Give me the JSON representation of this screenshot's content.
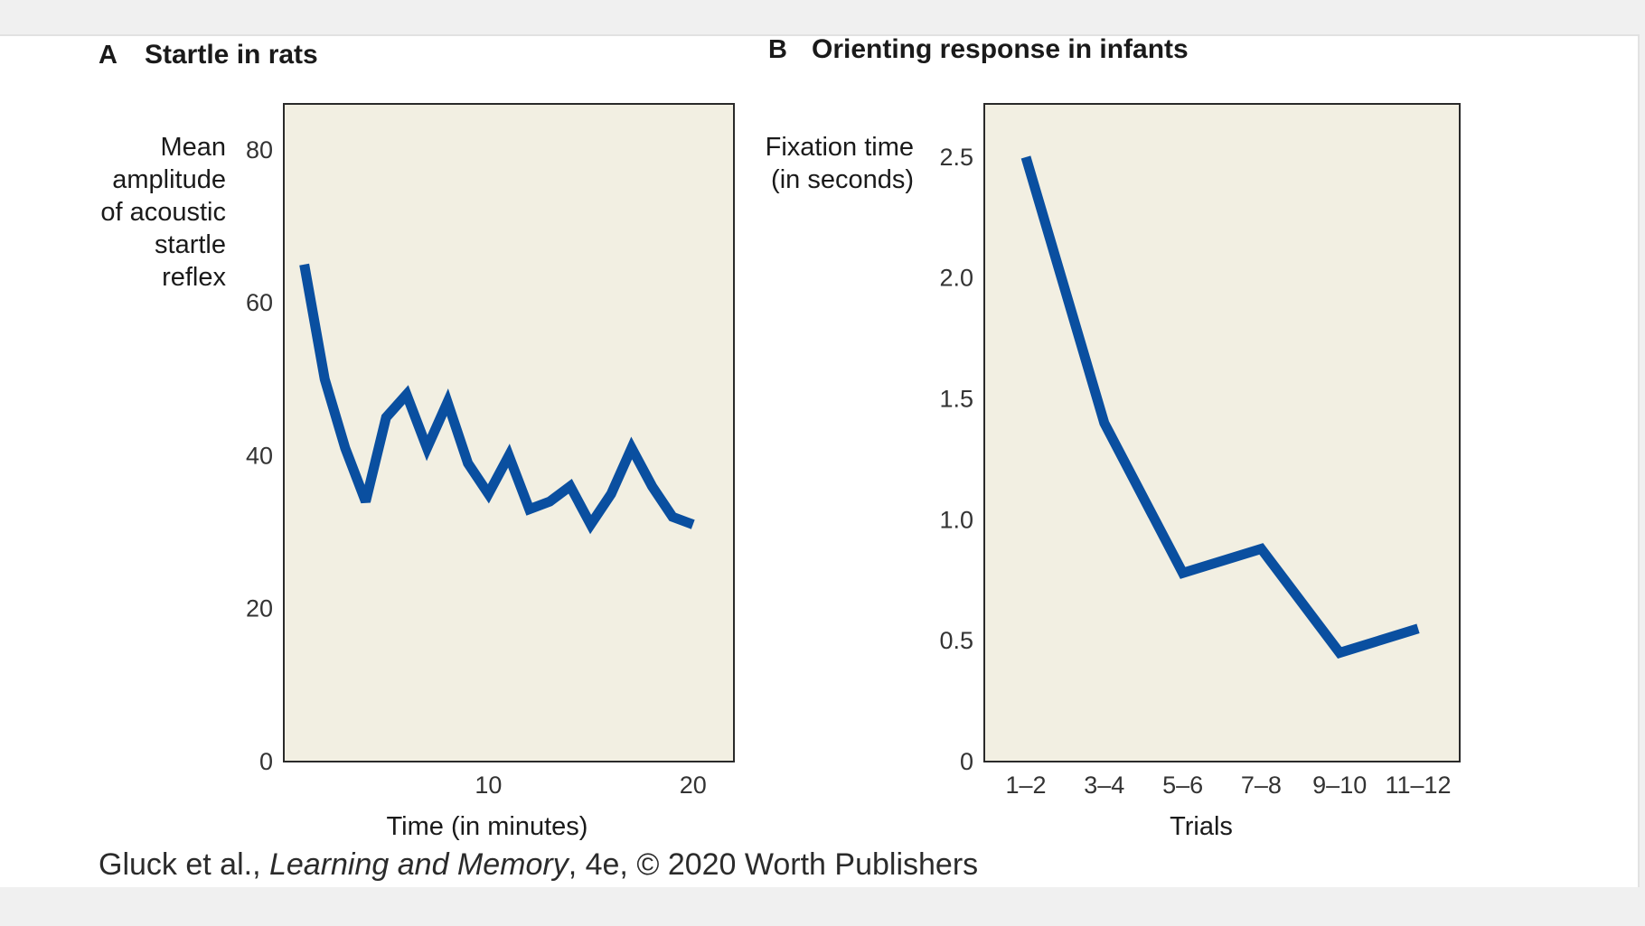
{
  "colors": {
    "plot_background": "#f2efe2",
    "line": "#0a4fa0",
    "frame": "#2a2a2a"
  },
  "credit": {
    "prefix": "Gluck et al., ",
    "book": "Learning and Memory",
    "suffix": ", 4e, © 2020 Worth Publishers"
  },
  "chart_data": [
    {
      "panel": "A",
      "title": "Startle in rats",
      "type": "line",
      "xlabel": "Time (in minutes)",
      "ylabel_lines": [
        "Mean",
        "amplitude",
        "of acoustic",
        "startle",
        "reflex"
      ],
      "xlim": [
        0,
        22
      ],
      "ylim": [
        0,
        86
      ],
      "x_ticks": [
        10,
        20
      ],
      "y_ticks": [
        0,
        20,
        40,
        60,
        80
      ],
      "series": [
        {
          "name": "Startle amplitude",
          "x": [
            1,
            2,
            3,
            4,
            5,
            6,
            7,
            8,
            9,
            10,
            11,
            12,
            13,
            14,
            15,
            16,
            17,
            18,
            19,
            20
          ],
          "y": [
            65,
            50,
            41,
            34,
            45,
            48,
            41,
            47,
            39,
            35,
            40,
            33,
            34,
            36,
            31,
            35,
            41,
            36,
            32,
            31
          ]
        }
      ]
    },
    {
      "panel": "B",
      "title": "Orienting response in infants",
      "type": "line",
      "xlabel": "Trials",
      "ylabel_lines": [
        "Fixation time",
        "(in seconds)"
      ],
      "categories": [
        "1–2",
        "3–4",
        "5–6",
        "7–8",
        "9–10",
        "11–12"
      ],
      "ylim": [
        0,
        2.72
      ],
      "y_ticks": [
        0,
        0.5,
        1.0,
        1.5,
        2.0,
        2.5
      ],
      "y_tick_labels": [
        "0",
        "0.5",
        "1.0",
        "1.5",
        "2.0",
        "2.5"
      ],
      "series": [
        {
          "name": "Fixation time",
          "values": [
            2.5,
            1.4,
            0.78,
            0.88,
            0.45,
            0.55
          ]
        }
      ]
    }
  ]
}
